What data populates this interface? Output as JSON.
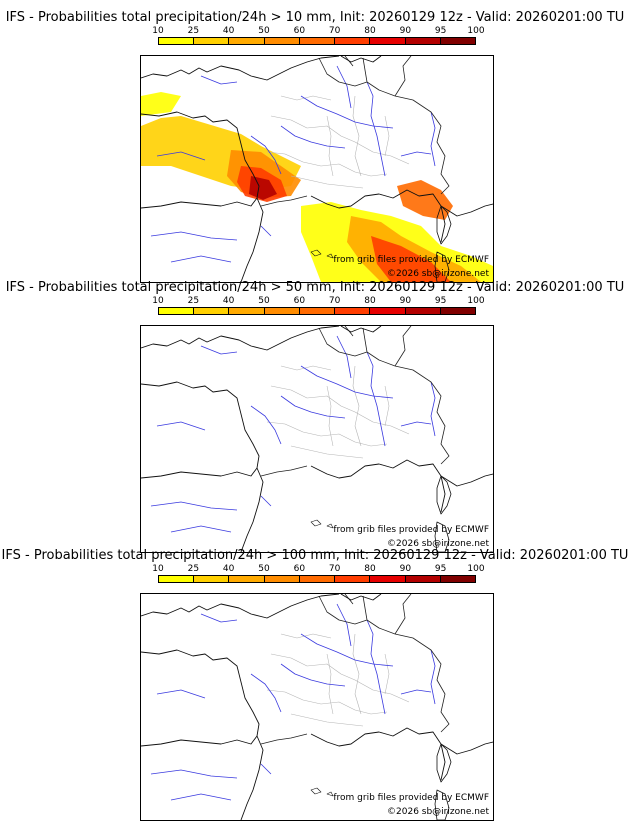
{
  "legend": {
    "labels": [
      "10",
      "25",
      "40",
      "50",
      "60",
      "70",
      "80",
      "90",
      "95",
      "100"
    ],
    "colors": [
      "#ffff00",
      "#ffd000",
      "#ffaa00",
      "#ff8c00",
      "#ff6a00",
      "#ff3d00",
      "#e60000",
      "#b30000",
      "#800000"
    ]
  },
  "panels": [
    {
      "title": "IFS - Probabilities total precipitation/24h > 10 mm, Init: 20260129 12z - Valid: 20260201:00 TU",
      "source": "from grib files provided by ECMWF",
      "copyright": "©2026 sb@irizone.net",
      "threshold": "> 10 mm",
      "has_precip": true
    },
    {
      "title": "IFS - Probabilities total precipitation/24h > 50 mm, Init: 20260129 12z - Valid: 20260201:00 TU",
      "source": "from grib files provided by ECMWF",
      "copyright": "©2026 sb@irizone.net",
      "threshold": "> 50 mm",
      "has_precip": false
    },
    {
      "title": "IFS - Probabilities total precipitation/24h > 100 mm, Init: 20260129 12z - Valid: 20260201:00 TU",
      "source": "from grib files provided by ECMWF",
      "copyright": "©2026 sb@irizone.net",
      "threshold": "> 100 mm",
      "has_precip": false
    }
  ]
}
